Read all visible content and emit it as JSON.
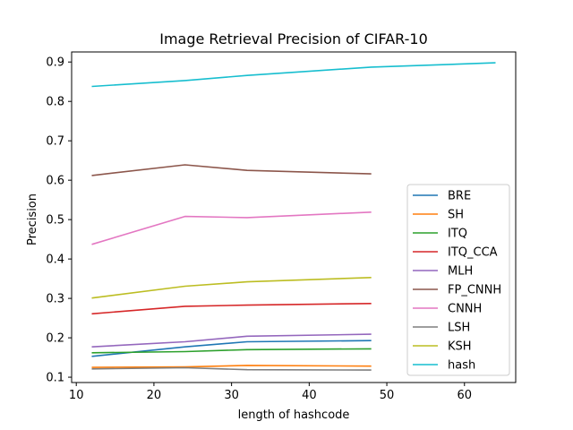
{
  "chart_data": {
    "type": "line",
    "title": "Image Retrieval Precision of CIFAR-10",
    "xlabel": "length of hashcode",
    "ylabel": "Precision",
    "xlim": [
      9.4,
      66.6
    ],
    "ylim": [
      0.0865,
      0.9255
    ],
    "xticks": [
      10,
      20,
      30,
      40,
      50,
      60
    ],
    "yticks": [
      0.1,
      0.2,
      0.3,
      0.4,
      0.5,
      0.6,
      0.7,
      0.8,
      0.9
    ],
    "grid": false,
    "legend_position": "lower-right",
    "series": [
      {
        "name": "BRE",
        "color": "#1f77b4",
        "x": [
          12,
          24,
          32,
          48
        ],
        "y": [
          0.153,
          0.177,
          0.19,
          0.193
        ]
      },
      {
        "name": "SH",
        "color": "#ff7f0e",
        "x": [
          12,
          24,
          32,
          48
        ],
        "y": [
          0.125,
          0.126,
          0.13,
          0.128
        ]
      },
      {
        "name": "ITQ",
        "color": "#2ca02c",
        "x": [
          12,
          24,
          32,
          48
        ],
        "y": [
          0.162,
          0.165,
          0.17,
          0.172
        ]
      },
      {
        "name": "ITQ_CCA",
        "color": "#d62728",
        "x": [
          12,
          24,
          32,
          48
        ],
        "y": [
          0.261,
          0.28,
          0.283,
          0.287
        ]
      },
      {
        "name": "MLH",
        "color": "#9467bd",
        "x": [
          12,
          24,
          32,
          48
        ],
        "y": [
          0.177,
          0.19,
          0.204,
          0.209
        ]
      },
      {
        "name": "FP_CNNH",
        "color": "#8c564b",
        "x": [
          12,
          24,
          32,
          48
        ],
        "y": [
          0.612,
          0.639,
          0.625,
          0.616
        ]
      },
      {
        "name": "CNNH",
        "color": "#e377c2",
        "x": [
          12,
          24,
          32,
          48
        ],
        "y": [
          0.437,
          0.508,
          0.505,
          0.519
        ]
      },
      {
        "name": "LSH",
        "color": "#7f7f7f",
        "x": [
          12,
          24,
          32,
          48
        ],
        "y": [
          0.121,
          0.124,
          0.119,
          0.118
        ]
      },
      {
        "name": "KSH",
        "color": "#bcbd22",
        "x": [
          12,
          24,
          32,
          48
        ],
        "y": [
          0.301,
          0.331,
          0.342,
          0.353
        ]
      },
      {
        "name": "hash",
        "color": "#17becf",
        "x": [
          12,
          24,
          32,
          48,
          64
        ],
        "y": [
          0.838,
          0.853,
          0.866,
          0.887,
          0.898
        ]
      }
    ]
  }
}
